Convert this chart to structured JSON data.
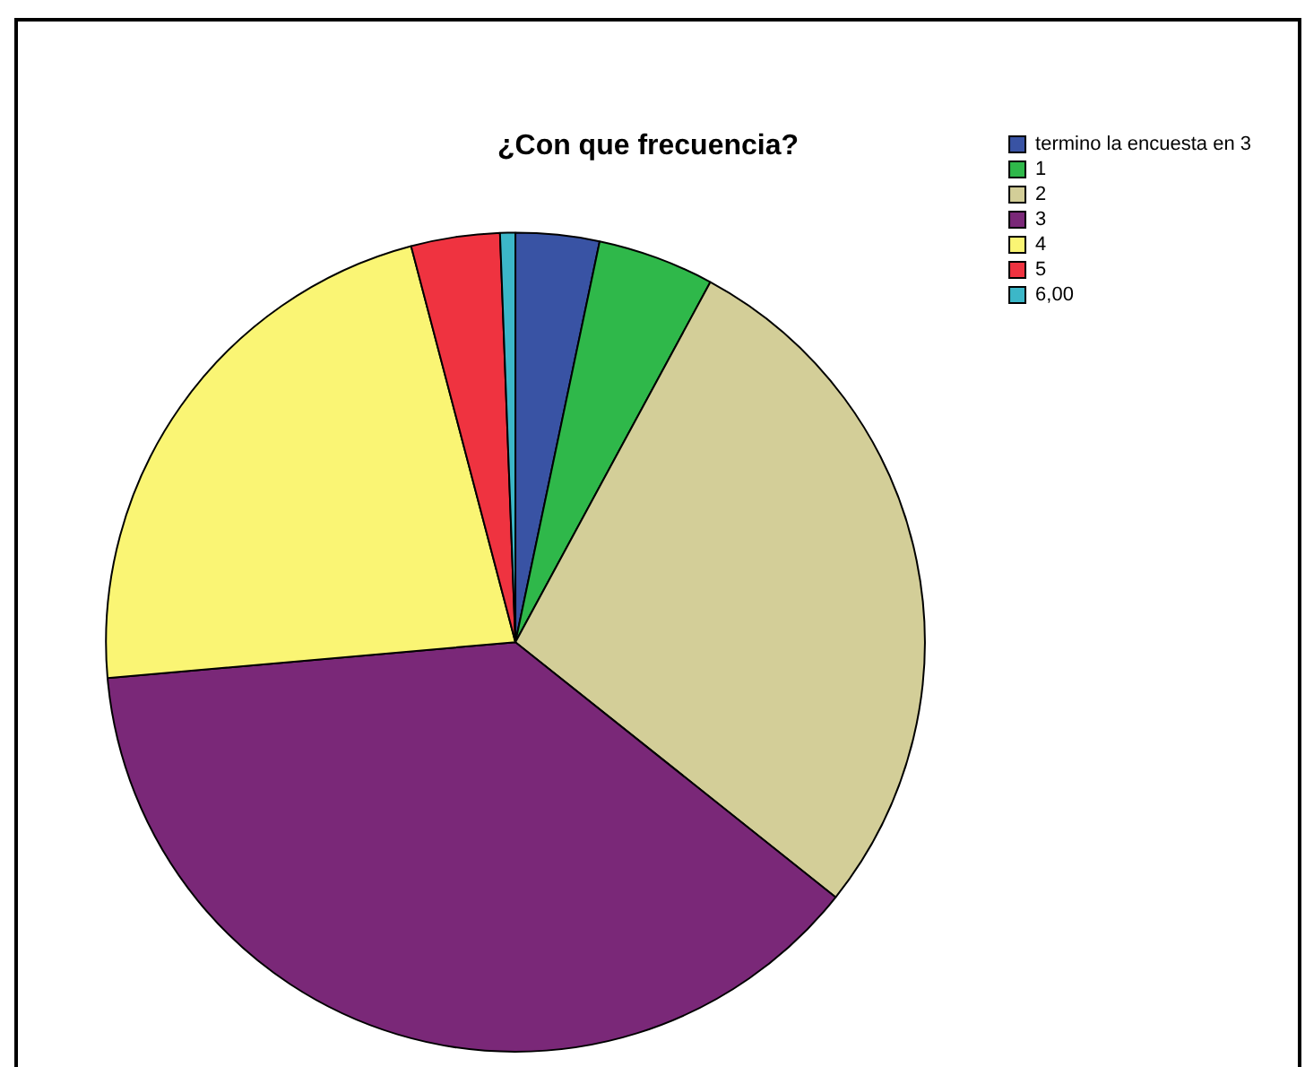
{
  "chart_data": {
    "type": "pie",
    "title": "¿Con que frecuencia?",
    "categories": [
      "termino la encuesta en 3",
      "1",
      "2",
      "3",
      "4",
      "5",
      "6,00"
    ],
    "values": [
      3.3,
      4.6,
      27.8,
      37.9,
      22.3,
      3.5,
      0.6
    ],
    "colors": [
      "#3953a4",
      "#2fb84a",
      "#d3ce98",
      "#7a2878",
      "#faf574",
      "#ef3340",
      "#3cb7c8"
    ],
    "legend": "top right"
  }
}
